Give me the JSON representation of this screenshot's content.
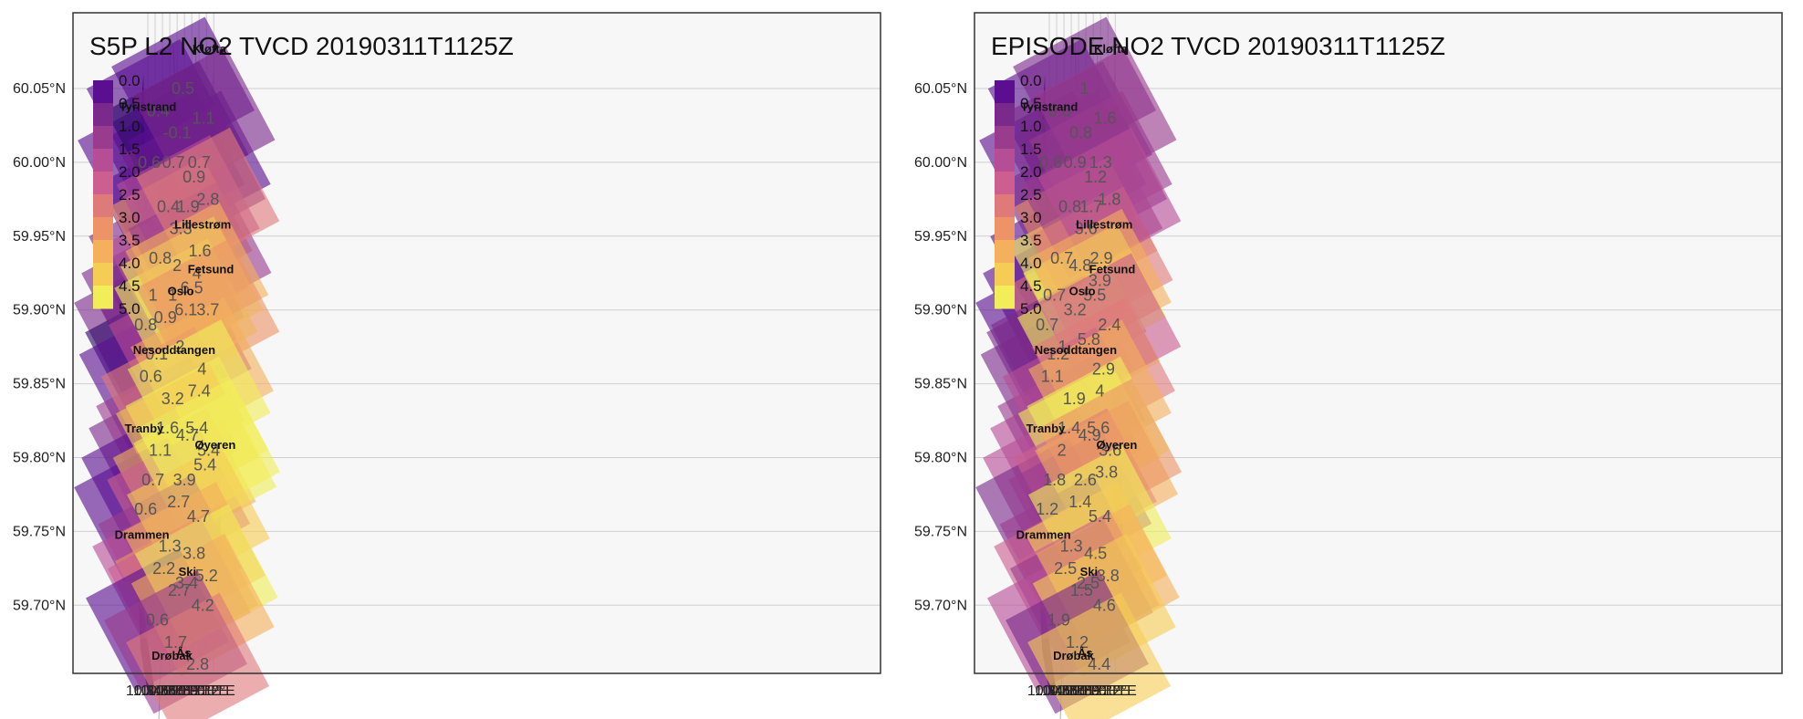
{
  "lon_ticks": [
    "10.3°E",
    "10.4°E",
    "10.5°E",
    "10.6°E",
    "10.7°E",
    "10.8°E",
    "10.9°E",
    "11.0°E",
    "11.1°E",
    "11.2°E"
  ],
  "lat_ticks": [
    "60.05°N",
    "60.00°N",
    "59.95°N",
    "59.90°N",
    "59.85°N",
    "59.80°N",
    "59.75°N",
    "59.70°N"
  ],
  "colorbar": {
    "labels": [
      "0.0",
      "0.5",
      "1.0",
      "1.5",
      "2.0",
      "2.5",
      "3.0",
      "3.5",
      "4.0",
      "4.5",
      "5.0"
    ],
    "colors": [
      "#2d0a6b",
      "#5b0e8f",
      "#7a2a8a",
      "#9a3c8e",
      "#b64e96",
      "#cc5f8f",
      "#df7a7a",
      "#ec9468",
      "#f4b05c",
      "#f5cd55",
      "#f1ee5a"
    ]
  },
  "places": [
    {
      "name": "Kløfta",
      "lon": 11.14,
      "lat": 60.074
    },
    {
      "name": "Tyristrand",
      "lon": 10.3,
      "lat": 60.035
    },
    {
      "name": "Lillestrøm",
      "lon": 11.05,
      "lat": 59.955
    },
    {
      "name": "Fetsund",
      "lon": 11.16,
      "lat": 59.925
    },
    {
      "name": "Oslo",
      "lon": 10.75,
      "lat": 59.91
    },
    {
      "name": "Nesoddtangen",
      "lon": 10.66,
      "lat": 59.87
    },
    {
      "name": "Tranby",
      "lon": 10.25,
      "lat": 59.817
    },
    {
      "name": "Øyeren",
      "lon": 11.22,
      "lat": 59.806
    },
    {
      "name": "Drammen",
      "lon": 10.22,
      "lat": 59.745
    },
    {
      "name": "Ski",
      "lon": 10.84,
      "lat": 59.72
    },
    {
      "name": "Drøbak",
      "lon": 10.63,
      "lat": 59.663
    },
    {
      "name": "Ås",
      "lon": 10.79,
      "lat": 59.665
    }
  ],
  "panels": [
    {
      "title": "S5P L2 NO2 TVCD 20190311T1125Z",
      "cells": [
        {
          "value": "0.6",
          "lon": 10.32,
          "lat": 60.0
        },
        {
          "value": "0.4",
          "lon": 10.44,
          "lat": 60.035
        },
        {
          "value": "0.8",
          "lon": 10.47,
          "lat": 59.935
        },
        {
          "value": "0.4",
          "lon": 10.58,
          "lat": 59.97
        },
        {
          "value": "0.7",
          "lon": 10.65,
          "lat": 60.0
        },
        {
          "value": "-0.1",
          "lon": 10.7,
          "lat": 60.02
        },
        {
          "value": "0.5",
          "lon": 10.78,
          "lat": 60.05
        },
        {
          "value": "0.9",
          "lon": 10.93,
          "lat": 59.99
        },
        {
          "value": "0.7",
          "lon": 11.0,
          "lat": 60.0
        },
        {
          "value": "1.1",
          "lon": 11.06,
          "lat": 60.03
        },
        {
          "value": "1",
          "lon": 10.37,
          "lat": 59.91
        },
        {
          "value": "0.8",
          "lon": 10.27,
          "lat": 59.89
        },
        {
          "value": "0.1",
          "lon": 10.42,
          "lat": 59.87
        },
        {
          "value": "0.9",
          "lon": 10.54,
          "lat": 59.895
        },
        {
          "value": "1",
          "lon": 10.64,
          "lat": 59.91
        },
        {
          "value": "2",
          "lon": 10.7,
          "lat": 59.93
        },
        {
          "value": "3.3",
          "lon": 10.75,
          "lat": 59.955
        },
        {
          "value": "1.9",
          "lon": 10.85,
          "lat": 59.97
        },
        {
          "value": "1.6",
          "lon": 11.01,
          "lat": 59.94
        },
        {
          "value": "2.8",
          "lon": 11.12,
          "lat": 59.975
        },
        {
          "value": "0.6",
          "lon": 10.34,
          "lat": 59.855
        },
        {
          "value": "2",
          "lon": 10.74,
          "lat": 59.875
        },
        {
          "value": "6.1",
          "lon": 10.82,
          "lat": 59.9
        },
        {
          "value": "6.5",
          "lon": 10.9,
          "lat": 59.915
        },
        {
          "value": "4",
          "lon": 10.97,
          "lat": 59.925
        },
        {
          "value": "3.7",
          "lon": 11.12,
          "lat": 59.9
        },
        {
          "value": "1.1",
          "lon": 10.47,
          "lat": 59.805
        },
        {
          "value": "1.6",
          "lon": 10.57,
          "lat": 59.82
        },
        {
          "value": "3.2",
          "lon": 10.64,
          "lat": 59.84
        },
        {
          "value": "4",
          "lon": 11.04,
          "lat": 59.86
        },
        {
          "value": "7.4",
          "lon": 11.0,
          "lat": 59.845
        },
        {
          "value": "0.7",
          "lon": 10.37,
          "lat": 59.785
        },
        {
          "value": "5.4",
          "lon": 10.97,
          "lat": 59.82
        },
        {
          "value": "4.7",
          "lon": 10.84,
          "lat": 59.815
        },
        {
          "value": "0.6",
          "lon": 10.27,
          "lat": 59.765
        },
        {
          "value": "3.9",
          "lon": 10.8,
          "lat": 59.785
        },
        {
          "value": "2.7",
          "lon": 10.72,
          "lat": 59.77
        },
        {
          "value": "5.4",
          "lon": 11.08,
          "lat": 59.795
        },
        {
          "value": "5.4",
          "lon": 11.13,
          "lat": 59.805
        },
        {
          "value": "1.3",
          "lon": 10.6,
          "lat": 59.74
        },
        {
          "value": "2.2",
          "lon": 10.52,
          "lat": 59.725
        },
        {
          "value": "4.7",
          "lon": 10.99,
          "lat": 59.76
        },
        {
          "value": "3.8",
          "lon": 10.93,
          "lat": 59.735
        },
        {
          "value": "3.4",
          "lon": 10.83,
          "lat": 59.715
        },
        {
          "value": "2.7",
          "lon": 10.73,
          "lat": 59.71
        },
        {
          "value": "0.6",
          "lon": 10.43,
          "lat": 59.69
        },
        {
          "value": "5.2",
          "lon": 11.1,
          "lat": 59.72
        },
        {
          "value": "4.2",
          "lon": 11.05,
          "lat": 59.7
        },
        {
          "value": "1.7",
          "lon": 10.68,
          "lat": 59.675
        },
        {
          "value": "2.8",
          "lon": 10.98,
          "lat": 59.66
        }
      ]
    },
    {
      "title": "EPISODE NO2 TVCD 20190311T1125Z",
      "cells": [
        {
          "value": "0.6",
          "lon": 10.32,
          "lat": 60.0
        },
        {
          "value": "0.6",
          "lon": 10.44,
          "lat": 60.035
        },
        {
          "value": "0.7",
          "lon": 10.47,
          "lat": 59.935
        },
        {
          "value": "0.8",
          "lon": 10.58,
          "lat": 59.97
        },
        {
          "value": "0.9",
          "lon": 10.65,
          "lat": 60.0
        },
        {
          "value": "0.8",
          "lon": 10.73,
          "lat": 60.02
        },
        {
          "value": "1",
          "lon": 10.78,
          "lat": 60.05
        },
        {
          "value": "1.2",
          "lon": 10.93,
          "lat": 59.99
        },
        {
          "value": "1.3",
          "lon": 11.0,
          "lat": 60.0
        },
        {
          "value": "1.6",
          "lon": 11.06,
          "lat": 60.03
        },
        {
          "value": "0.7",
          "lon": 10.37,
          "lat": 59.91
        },
        {
          "value": "0.7",
          "lon": 10.27,
          "lat": 59.89
        },
        {
          "value": "1.2",
          "lon": 10.42,
          "lat": 59.87
        },
        {
          "value": "3.2",
          "lon": 10.65,
          "lat": 59.9
        },
        {
          "value": "4.8",
          "lon": 10.72,
          "lat": 59.93
        },
        {
          "value": "3.6",
          "lon": 10.8,
          "lat": 59.955
        },
        {
          "value": "1.7",
          "lon": 10.87,
          "lat": 59.97
        },
        {
          "value": "2.9",
          "lon": 11.01,
          "lat": 59.935
        },
        {
          "value": "1.8",
          "lon": 11.12,
          "lat": 59.975
        },
        {
          "value": "1",
          "lon": 10.48,
          "lat": 59.875
        },
        {
          "value": "1.1",
          "lon": 10.34,
          "lat": 59.855
        },
        {
          "value": "5.8",
          "lon": 10.84,
          "lat": 59.88
        },
        {
          "value": "5.5",
          "lon": 10.92,
          "lat": 59.91
        },
        {
          "value": "3.9",
          "lon": 10.99,
          "lat": 59.92
        },
        {
          "value": "2.4",
          "lon": 11.12,
          "lat": 59.89
        },
        {
          "value": "2",
          "lon": 10.47,
          "lat": 59.805
        },
        {
          "value": "1.4",
          "lon": 10.57,
          "lat": 59.82
        },
        {
          "value": "1.9",
          "lon": 10.64,
          "lat": 59.84
        },
        {
          "value": "2.9",
          "lon": 11.04,
          "lat": 59.86
        },
        {
          "value": "4",
          "lon": 10.99,
          "lat": 59.845
        },
        {
          "value": "1.8",
          "lon": 10.37,
          "lat": 59.785
        },
        {
          "value": "5.6",
          "lon": 10.97,
          "lat": 59.82
        },
        {
          "value": "4.9",
          "lon": 10.85,
          "lat": 59.815
        },
        {
          "value": "1.2",
          "lon": 10.27,
          "lat": 59.765
        },
        {
          "value": "2.6",
          "lon": 10.79,
          "lat": 59.785
        },
        {
          "value": "1.4",
          "lon": 10.72,
          "lat": 59.77
        },
        {
          "value": "3.8",
          "lon": 11.08,
          "lat": 59.79
        },
        {
          "value": "3.6",
          "lon": 11.13,
          "lat": 59.805
        },
        {
          "value": "1.3",
          "lon": 10.6,
          "lat": 59.74
        },
        {
          "value": "2.5",
          "lon": 10.52,
          "lat": 59.725
        },
        {
          "value": "5.4",
          "lon": 10.99,
          "lat": 59.76
        },
        {
          "value": "4.5",
          "lon": 10.93,
          "lat": 59.735
        },
        {
          "value": "2.5",
          "lon": 10.83,
          "lat": 59.715
        },
        {
          "value": "1.5",
          "lon": 10.74,
          "lat": 59.71
        },
        {
          "value": "1.9",
          "lon": 10.43,
          "lat": 59.69
        },
        {
          "value": "3.8",
          "lon": 11.1,
          "lat": 59.72
        },
        {
          "value": "4.6",
          "lon": 11.05,
          "lat": 59.7
        },
        {
          "value": "1.2",
          "lon": 10.68,
          "lat": 59.675
        },
        {
          "value": "4.4",
          "lon": 10.98,
          "lat": 59.66
        }
      ]
    }
  ]
}
